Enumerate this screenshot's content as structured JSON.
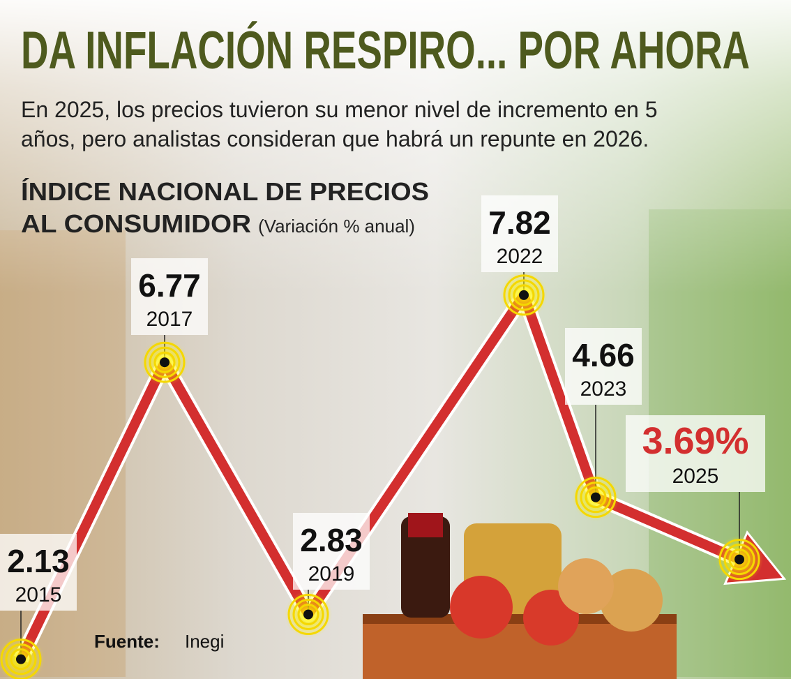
{
  "chart_data": {
    "type": "line",
    "title": "DA INFLACIÓN RESPIRO... POR AHORA",
    "subtitle": [
      "En 2025, los precios tuvieron su menor nivel de incremento en 5",
      "años, pero analistas consideran que habrá un repunte en 2026."
    ],
    "heading": [
      "ÍNDICE NACIONAL DE PRECIOS",
      "AL CONSUMIDOR"
    ],
    "heading_note": "(Variación % anual)",
    "source_label": "Fuente:",
    "source": "Inegi",
    "x": [
      2015,
      2017,
      2019,
      2022,
      2023,
      2025
    ],
    "series": [
      {
        "color": "#d32f2f",
        "values": [
          2.13,
          6.77,
          2.83,
          7.82,
          4.66,
          3.69
        ],
        "value_labels": [
          "2.13",
          "6.77",
          "2.83",
          "7.82",
          "4.66",
          "3.69%"
        ]
      }
    ]
  }
}
